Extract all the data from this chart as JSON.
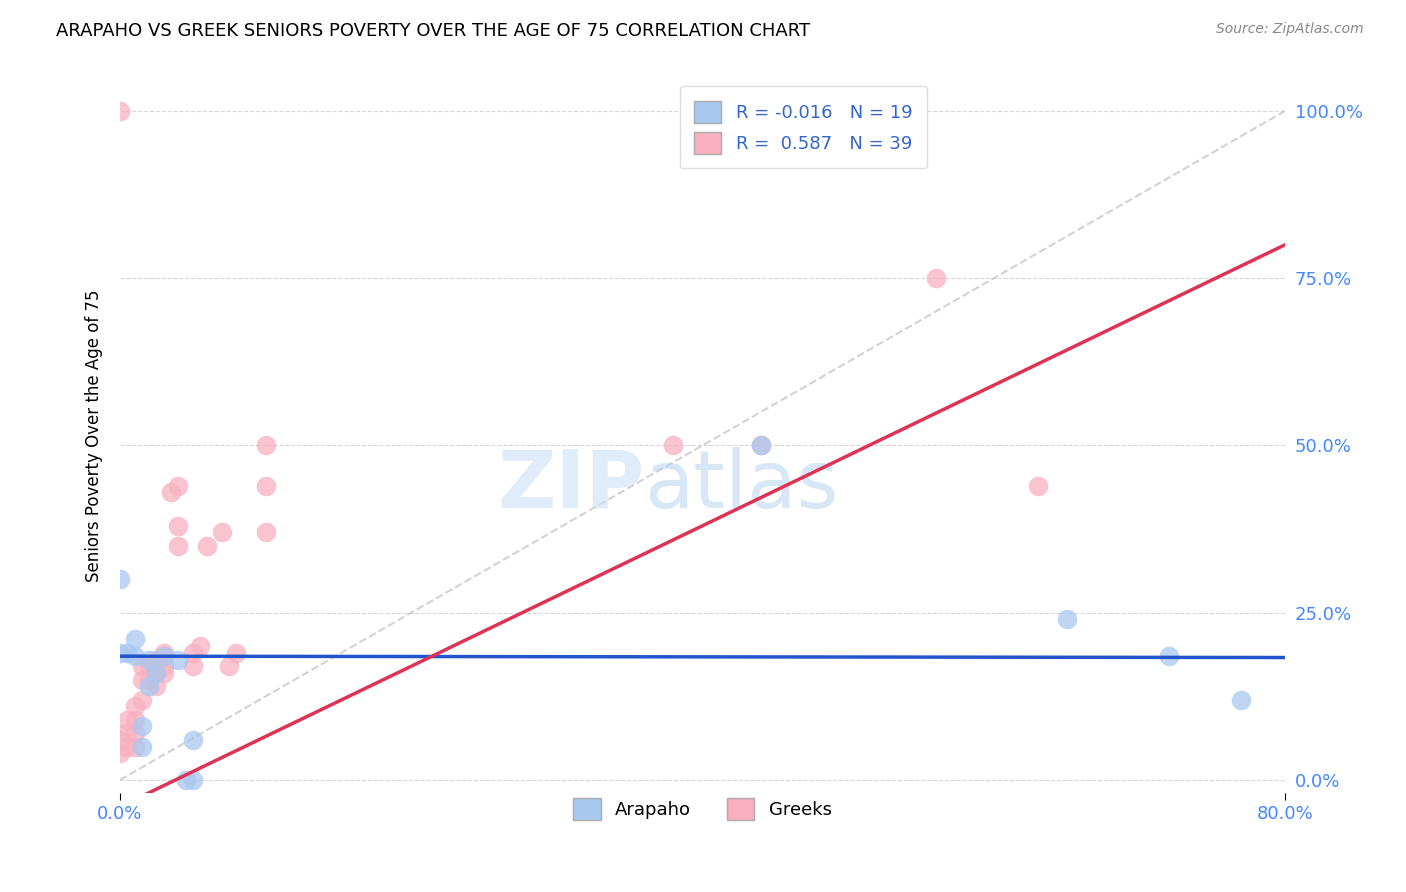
{
  "title": "ARAPAHO VS GREEK SENIORS POVERTY OVER THE AGE OF 75 CORRELATION CHART",
  "source": "Source: ZipAtlas.com",
  "ylabel": "Seniors Poverty Over the Age of 75",
  "ytick_labels": [
    "0.0%",
    "25.0%",
    "50.0%",
    "75.0%",
    "100.0%"
  ],
  "ytick_values": [
    0.0,
    0.25,
    0.5,
    0.75,
    1.0
  ],
  "xlim": [
    0.0,
    0.8
  ],
  "ylim": [
    -0.02,
    1.05
  ],
  "legend_labels": [
    "Arapaho",
    "Greeks"
  ],
  "arapaho_color": "#a8c8f0",
  "greek_color": "#f8b0c0",
  "arapaho_line_color": "#2255cc",
  "greek_line_color": "#dd3355",
  "diagonal_color": "#c0c0c0",
  "R_arapaho": -0.016,
  "N_arapaho": 19,
  "R_greek": 0.587,
  "N_greek": 39,
  "arapaho_x": [
    0.0,
    0.0,
    0.005,
    0.01,
    0.01,
    0.015,
    0.015,
    0.02,
    0.02,
    0.025,
    0.03,
    0.04,
    0.045,
    0.05,
    0.05,
    0.44,
    0.65,
    0.72,
    0.77
  ],
  "arapaho_y": [
    0.19,
    0.3,
    0.19,
    0.185,
    0.21,
    0.05,
    0.08,
    0.14,
    0.18,
    0.16,
    0.185,
    0.18,
    0.0,
    0.0,
    0.06,
    0.5,
    0.24,
    0.185,
    0.12
  ],
  "greek_x": [
    0.0,
    0.0,
    0.0,
    0.005,
    0.005,
    0.005,
    0.01,
    0.01,
    0.01,
    0.01,
    0.015,
    0.015,
    0.015,
    0.02,
    0.02,
    0.025,
    0.025,
    0.025,
    0.03,
    0.03,
    0.03,
    0.035,
    0.04,
    0.04,
    0.04,
    0.05,
    0.05,
    0.055,
    0.06,
    0.07,
    0.075,
    0.08,
    0.1,
    0.1,
    0.1,
    0.38,
    0.44,
    0.56,
    0.63
  ],
  "greek_y": [
    0.04,
    0.06,
    1.0,
    0.05,
    0.07,
    0.09,
    0.05,
    0.07,
    0.09,
    0.11,
    0.12,
    0.15,
    0.17,
    0.15,
    0.17,
    0.14,
    0.16,
    0.18,
    0.16,
    0.17,
    0.19,
    0.43,
    0.35,
    0.38,
    0.44,
    0.17,
    0.19,
    0.2,
    0.35,
    0.37,
    0.17,
    0.19,
    0.37,
    0.44,
    0.5,
    0.5,
    0.5,
    0.75,
    0.44
  ],
  "arapaho_line_x": [
    0.0,
    0.8
  ],
  "arapaho_line_y": [
    0.185,
    0.183
  ],
  "greek_line_x": [
    0.0,
    0.8
  ],
  "greek_line_y": [
    -0.04,
    0.8
  ]
}
